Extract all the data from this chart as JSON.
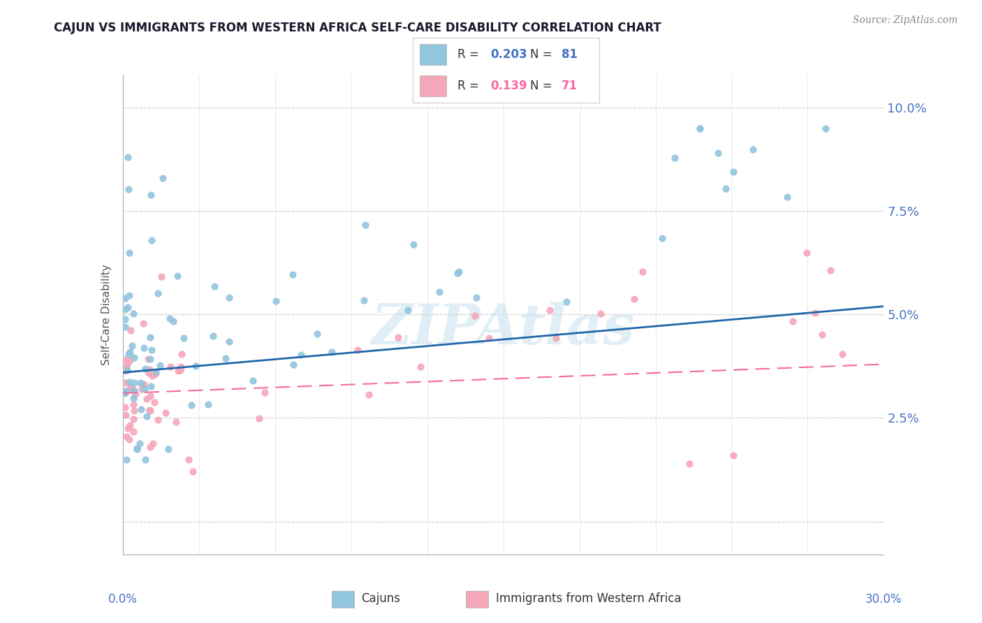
{
  "title": "CAJUN VS IMMIGRANTS FROM WESTERN AFRICA SELF-CARE DISABILITY CORRELATION CHART",
  "source": "Source: ZipAtlas.com",
  "ylabel": "Self-Care Disability",
  "ytick_vals": [
    0.0,
    0.025,
    0.05,
    0.075,
    0.1
  ],
  "ytick_labels": [
    "",
    "2.5%",
    "5.0%",
    "7.5%",
    "10.0%"
  ],
  "xlim": [
    0.0,
    0.3
  ],
  "ylim": [
    -0.008,
    0.108
  ],
  "legend_r1": "0.203",
  "legend_n1": "81",
  "legend_r2": "0.139",
  "legend_n2": "71",
  "cajun_color": "#92C5DE",
  "western_africa_color": "#F4A7B9",
  "trend_blue": "#2166AC",
  "trend_pink": "#F768A1",
  "background_color": "#ffffff",
  "watermark": "ZIPAtlas",
  "blue_trend_y0": 0.036,
  "blue_trend_y1": 0.052,
  "pink_trend_y0": 0.031,
  "pink_trend_y1": 0.038,
  "title_color": "#1a1a2e",
  "source_color": "#888888",
  "axis_label_color": "#4472C4",
  "ylabel_color": "#555555"
}
